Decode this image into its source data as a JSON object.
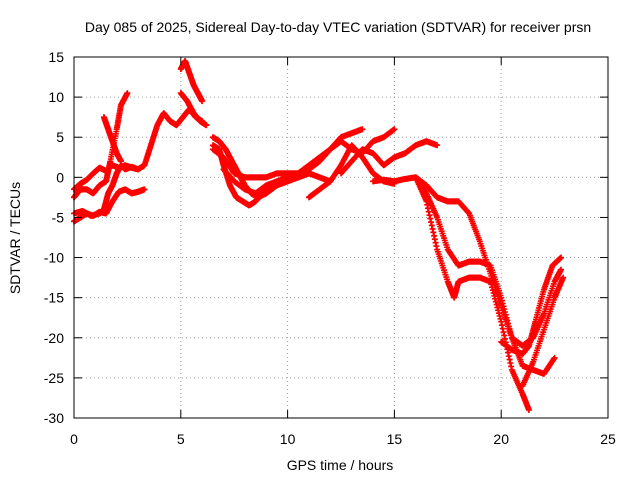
{
  "chart_data": {
    "type": "scatter",
    "title": "Day 085 of 2025, Sidereal Day-to-day VTEC variation (SDTVAR) for receiver prsn",
    "xlabel": "GPS time / hours",
    "ylabel": "SDTVAR / TECUs",
    "xlim": [
      0,
      25
    ],
    "ylim": [
      -30,
      15
    ],
    "xticks": [
      0,
      5,
      10,
      15,
      20,
      25
    ],
    "yticks": [
      -30,
      -25,
      -20,
      -15,
      -10,
      -5,
      0,
      5,
      10,
      15
    ],
    "grid": true,
    "marker": "+",
    "color": "#ff0000",
    "series": [
      {
        "x": [
          0.0,
          0.3,
          0.6,
          0.9,
          1.2,
          1.5,
          1.8,
          2.1,
          2.4,
          2.7,
          3.0,
          3.3,
          3.6,
          3.9,
          4.2,
          4.5,
          4.8,
          5.1,
          5.4,
          5.7,
          6.0
        ],
        "y": [
          -1.5,
          -0.8,
          -0.3,
          0.5,
          1.2,
          0.8,
          1.5,
          1.2,
          1.5,
          1.2,
          1.0,
          1.5,
          4.0,
          6.5,
          8.0,
          7.0,
          6.5,
          7.5,
          8.5,
          7.5,
          7.0
        ]
      },
      {
        "x": [
          0.0,
          0.3,
          0.6,
          0.9,
          1.2,
          1.5,
          1.8,
          2.1,
          2.4,
          2.7,
          3.0,
          3.3
        ],
        "y": [
          -5.5,
          -5.0,
          -4.5,
          -4.8,
          -4.3,
          -4.5,
          -3.0,
          -1.8,
          -1.5,
          -2.0,
          -1.8,
          -1.5
        ]
      },
      {
        "x": [
          0.0,
          0.3,
          0.6,
          0.9,
          1.2,
          1.5,
          1.7,
          2.0,
          2.2,
          2.5
        ],
        "y": [
          -2.5,
          -1.5,
          -1.5,
          -2.0,
          -1.0,
          -0.5,
          2.0,
          6.0,
          9.0,
          10.5
        ]
      },
      {
        "x": [
          0.0,
          0.4,
          0.8,
          1.2,
          1.4,
          1.6,
          1.8,
          2.0,
          2.2,
          2.4,
          2.7,
          3.0
        ],
        "y": [
          -4.5,
          -4.2,
          -4.8,
          -4.5,
          -4.0,
          -2.0,
          -1.0,
          0.5,
          1.5,
          1.0,
          1.3,
          1.0
        ]
      },
      {
        "x": [
          1.4,
          1.6,
          1.8,
          2.0,
          2.2
        ],
        "y": [
          7.5,
          6.0,
          4.5,
          3.0,
          2.0
        ]
      },
      {
        "x": [
          5.0,
          5.2,
          5.4,
          5.6,
          5.8,
          6.0
        ],
        "y": [
          13.5,
          14.5,
          13.0,
          11.5,
          10.5,
          9.5
        ]
      },
      {
        "x": [
          5.0,
          5.3,
          5.6,
          5.9,
          6.2
        ],
        "y": [
          10.5,
          9.5,
          8.0,
          7.0,
          6.5
        ]
      },
      {
        "x": [
          6.5,
          6.8,
          7.0,
          7.3,
          7.6,
          7.9,
          8.2,
          8.5,
          9.0,
          9.5,
          10.0,
          10.5,
          11.0
        ],
        "y": [
          4.0,
          3.5,
          1.5,
          -1.0,
          -2.5,
          -3.0,
          -3.5,
          -3.0,
          -1.5,
          -0.5,
          0.0,
          0.0,
          0.5
        ]
      },
      {
        "x": [
          6.5,
          6.8,
          7.1,
          7.4,
          7.7,
          8.0,
          8.3,
          8.6,
          9.0,
          9.5,
          10.0,
          10.5,
          11.0,
          11.5,
          12.0,
          12.5,
          13.0,
          13.5,
          14.0,
          14.5,
          15.0
        ],
        "y": [
          5.0,
          4.5,
          3.5,
          2.0,
          0.5,
          -1.0,
          -2.0,
          -2.5,
          -2.0,
          -1.0,
          -0.5,
          0.5,
          1.5,
          2.5,
          3.5,
          4.5,
          3.5,
          3.0,
          4.5,
          5.0,
          6.0
        ]
      },
      {
        "x": [
          6.5,
          7.0,
          7.5,
          8.0,
          8.5,
          9.0,
          9.5,
          10.0,
          10.5,
          11.0,
          11.5,
          12.0,
          12.5,
          13.0,
          13.5
        ],
        "y": [
          3.5,
          2.5,
          0.5,
          0.0,
          0.0,
          0.0,
          0.5,
          0.5,
          0.5,
          1.0,
          2.0,
          3.5,
          5.0,
          5.5,
          6.0
        ]
      },
      {
        "x": [
          7.0,
          7.5,
          8.0,
          8.5,
          9.0,
          9.5,
          10.0,
          10.5,
          11.0,
          11.5,
          12.0
        ],
        "y": [
          1.0,
          -0.5,
          -1.5,
          -2.0,
          -1.0,
          -0.5,
          -0.5,
          0.0,
          0.5,
          0.0,
          -0.5
        ]
      },
      {
        "x": [
          11.0,
          11.5,
          12.0,
          12.5,
          13.0,
          13.5,
          14.0,
          14.5,
          15.0
        ],
        "y": [
          -2.5,
          -1.5,
          -0.5,
          1.5,
          4.0,
          2.5,
          0.5,
          -0.5,
          -0.8
        ]
      },
      {
        "x": [
          12.5,
          13.0,
          13.5,
          14.0,
          14.5,
          15.0,
          15.5,
          16.0,
          16.5,
          17.0
        ],
        "y": [
          0.5,
          2.0,
          3.5,
          3.0,
          1.5,
          2.5,
          3.0,
          4.0,
          4.5,
          4.0
        ]
      },
      {
        "x": [
          14.0,
          14.5,
          15.0,
          15.5,
          16.0,
          16.5,
          17.0,
          17.5,
          18.0,
          18.5,
          19.0,
          19.5,
          20.0,
          20.5,
          21.0,
          21.5,
          22.0,
          22.5,
          22.8
        ],
        "y": [
          -0.5,
          -0.3,
          -0.5,
          -0.2,
          0.0,
          -1.0,
          -2.5,
          -3.0,
          -3.0,
          -4.5,
          -8.0,
          -12.0,
          -16.0,
          -20.0,
          -21.0,
          -20.0,
          -17.0,
          -13.0,
          -11.5
        ]
      },
      {
        "x": [
          16.0,
          16.5,
          17.0,
          17.5,
          17.8,
          18.0,
          18.5,
          19.0,
          19.5,
          20.0,
          20.5,
          21.0,
          21.3
        ],
        "y": [
          0.0,
          -3.0,
          -9.0,
          -13.0,
          -15.0,
          -13.0,
          -12.5,
          -12.5,
          -13.0,
          -18.0,
          -24.0,
          -27.0,
          -29.0
        ]
      },
      {
        "x": [
          16.0,
          16.5,
          17.0,
          17.5,
          18.0,
          18.5,
          19.0,
          19.5,
          20.0,
          20.5,
          21.0,
          21.5,
          22.0,
          22.5
        ],
        "y": [
          0.0,
          -2.0,
          -5.0,
          -9.0,
          -11.0,
          -10.5,
          -10.5,
          -11.0,
          -15.0,
          -20.0,
          -23.5,
          -24.0,
          -24.5,
          -22.5
        ]
      },
      {
        "x": [
          20.0,
          20.5,
          21.0,
          21.3,
          21.6,
          22.0,
          22.4,
          22.8
        ],
        "y": [
          -20.5,
          -21.5,
          -22.0,
          -21.0,
          -18.0,
          -14.0,
          -11.0,
          -10.0
        ]
      },
      {
        "x": [
          21.0,
          21.5,
          22.0,
          22.5,
          22.9
        ],
        "y": [
          -26.0,
          -23.0,
          -19.0,
          -15.0,
          -12.5
        ]
      }
    ]
  }
}
